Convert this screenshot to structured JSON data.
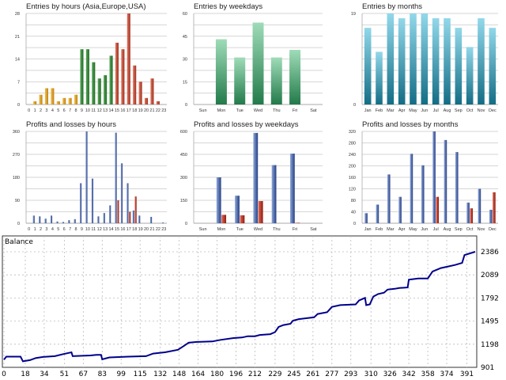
{
  "colors": {
    "hours_asia": "#d9a020",
    "hours_europe": "#2f7f35",
    "hours_usa": "#b9402e",
    "weekdays": "#3f9a6a",
    "months": "#2a8aa5",
    "profit": "#3356a0",
    "loss": "#b02a1a",
    "balance_line": "#00008b"
  },
  "chart_data": [
    {
      "type": "bar",
      "title": "Entries by hours (Asia,Europe,USA)",
      "categories": [
        "0",
        "1",
        "2",
        "3",
        "4",
        "5",
        "6",
        "7",
        "8",
        "9",
        "10",
        "11",
        "12",
        "13",
        "14",
        "15",
        "16",
        "17",
        "18",
        "19",
        "20",
        "21",
        "22",
        "23"
      ],
      "values": [
        0,
        1,
        3,
        5,
        5,
        1,
        2,
        2,
        3,
        17,
        17,
        13,
        8,
        9,
        15,
        19,
        17,
        28,
        12,
        7,
        2,
        8,
        1,
        0
      ],
      "color_groups": [
        "asia",
        "asia",
        "asia",
        "asia",
        "asia",
        "asia",
        "asia",
        "asia",
        "asia",
        "europe",
        "europe",
        "europe",
        "europe",
        "europe",
        "europe",
        "usa",
        "usa",
        "usa",
        "usa",
        "usa",
        "usa",
        "usa",
        "usa",
        "usa"
      ],
      "ylim": [
        0,
        28
      ],
      "yticks": [
        "0",
        "7",
        "14",
        "21",
        "28"
      ],
      "grid": true
    },
    {
      "type": "bar",
      "title": "Entries by weekdays",
      "categories": [
        "Sun",
        "Mon",
        "Tue",
        "Wed",
        "Thu",
        "Fri",
        "Sat"
      ],
      "values": [
        0,
        43,
        31,
        54,
        31,
        36,
        0
      ],
      "ylim": [
        0,
        60
      ],
      "yticks": [
        "0",
        "15",
        "30",
        "45",
        "60"
      ],
      "grid": true
    },
    {
      "type": "bar",
      "title": "Entries by months",
      "categories": [
        "Jan",
        "Feb",
        "Mar",
        "Apr",
        "May",
        "Jun",
        "Jul",
        "Aug",
        "Sep",
        "Oct",
        "Nov",
        "Dec"
      ],
      "values": [
        16,
        11,
        19,
        18,
        19,
        19,
        18,
        18,
        16,
        12,
        18,
        16
      ],
      "ylim": [
        0,
        19
      ],
      "yticks": [
        "0",
        "19"
      ],
      "grid": true
    },
    {
      "type": "bar",
      "title": "Profits and losses by hours",
      "categories": [
        "0",
        "1",
        "2",
        "3",
        "4",
        "5",
        "6",
        "7",
        "8",
        "9",
        "10",
        "11",
        "12",
        "13",
        "14",
        "15",
        "16",
        "17",
        "18",
        "19",
        "20",
        "21",
        "22",
        "23"
      ],
      "series": [
        {
          "values": [
            0,
            30,
            27,
            18,
            30,
            7,
            5,
            12,
            16,
            157,
            360,
            175,
            27,
            40,
            70,
            355,
            235,
            157,
            50,
            30,
            0,
            25,
            0,
            3
          ]
        },
        {
          "values": [
            0,
            0,
            0,
            0,
            0,
            0,
            0,
            0,
            0,
            0,
            0,
            0,
            0,
            0,
            0,
            90,
            0,
            45,
            105,
            0,
            0,
            0,
            0,
            0
          ]
        }
      ],
      "ylim": [
        0,
        360
      ],
      "yticks": [
        "0",
        "90",
        "180",
        "270",
        "360"
      ],
      "grid": true
    },
    {
      "type": "bar",
      "title": "Profits and losses by weekdays",
      "categories": [
        "Sun",
        "Mon",
        "Tue",
        "Wed",
        "Thu",
        "Fri",
        "Sat"
      ],
      "series": [
        {
          "values": [
            0,
            300,
            180,
            590,
            380,
            455,
            0
          ]
        },
        {
          "values": [
            0,
            55,
            52,
            145,
            0,
            3,
            0
          ]
        }
      ],
      "ylim": [
        0,
        600
      ],
      "yticks": [
        "0",
        "150",
        "300",
        "450",
        "600"
      ],
      "grid": true
    },
    {
      "type": "bar",
      "title": "Profits and losses by months",
      "categories": [
        "Jan",
        "Feb",
        "Mar",
        "Apr",
        "May",
        "Jun",
        "Jul",
        "Aug",
        "Sep",
        "Oct",
        "Nov",
        "Dec"
      ],
      "series": [
        {
          "values": [
            35,
            65,
            170,
            92,
            242,
            202,
            320,
            290,
            248,
            72,
            120,
            47
          ]
        },
        {
          "values": [
            0,
            0,
            0,
            0,
            0,
            0,
            92,
            0,
            0,
            52,
            0,
            108
          ]
        }
      ],
      "ylim": [
        0,
        320
      ],
      "yticks": [
        "0",
        "40",
        "80",
        "120",
        "160",
        "200",
        "240",
        "280",
        "320"
      ],
      "grid": true
    },
    {
      "type": "line",
      "title": "Balance",
      "xticks": [
        "0",
        "18",
        "34",
        "51",
        "67",
        "83",
        "99",
        "115",
        "132",
        "148",
        "164",
        "180",
        "196",
        "212",
        "229",
        "245",
        "261",
        "277",
        "293",
        "310",
        "326",
        "342",
        "358",
        "374",
        "391"
      ],
      "yticks": [
        "901",
        "1198",
        "1495",
        "1792",
        "2089",
        "2386"
      ],
      "xlim": [
        0,
        398
      ],
      "ylim": [
        901,
        2386
      ],
      "grid": "dashed",
      "points": [
        [
          0,
          1001
        ],
        [
          2,
          1038
        ],
        [
          14,
          1038
        ],
        [
          16,
          978
        ],
        [
          22,
          994
        ],
        [
          27,
          1021
        ],
        [
          33,
          1034
        ],
        [
          43,
          1044
        ],
        [
          50,
          1071
        ],
        [
          57,
          1094
        ],
        [
          58,
          1044
        ],
        [
          73,
          1054
        ],
        [
          78,
          1061
        ],
        [
          82,
          1061
        ],
        [
          83,
          1004
        ],
        [
          89,
          1028
        ],
        [
          105,
          1038
        ],
        [
          120,
          1044
        ],
        [
          126,
          1078
        ],
        [
          136,
          1094
        ],
        [
          147,
          1127
        ],
        [
          152,
          1177
        ],
        [
          156,
          1217
        ],
        [
          163,
          1227
        ],
        [
          176,
          1234
        ],
        [
          183,
          1254
        ],
        [
          194,
          1277
        ],
        [
          201,
          1284
        ],
        [
          206,
          1301
        ],
        [
          212,
          1301
        ],
        [
          216,
          1317
        ],
        [
          225,
          1327
        ],
        [
          229,
          1354
        ],
        [
          232,
          1420
        ],
        [
          236,
          1444
        ],
        [
          242,
          1460
        ],
        [
          244,
          1500
        ],
        [
          249,
          1520
        ],
        [
          262,
          1544
        ],
        [
          265,
          1587
        ],
        [
          273,
          1610
        ],
        [
          277,
          1677
        ],
        [
          284,
          1700
        ],
        [
          297,
          1710
        ],
        [
          300,
          1760
        ],
        [
          305,
          1793
        ],
        [
          306,
          1700
        ],
        [
          309,
          1710
        ],
        [
          312,
          1810
        ],
        [
          316,
          1843
        ],
        [
          321,
          1860
        ],
        [
          324,
          1900
        ],
        [
          330,
          1910
        ],
        [
          334,
          1920
        ],
        [
          341,
          1927
        ],
        [
          342,
          2027
        ],
        [
          350,
          2043
        ],
        [
          358,
          2043
        ],
        [
          362,
          2133
        ],
        [
          369,
          2176
        ],
        [
          374,
          2193
        ],
        [
          381,
          2216
        ],
        [
          387,
          2243
        ],
        [
          389,
          2343
        ],
        [
          398,
          2386
        ]
      ]
    }
  ]
}
